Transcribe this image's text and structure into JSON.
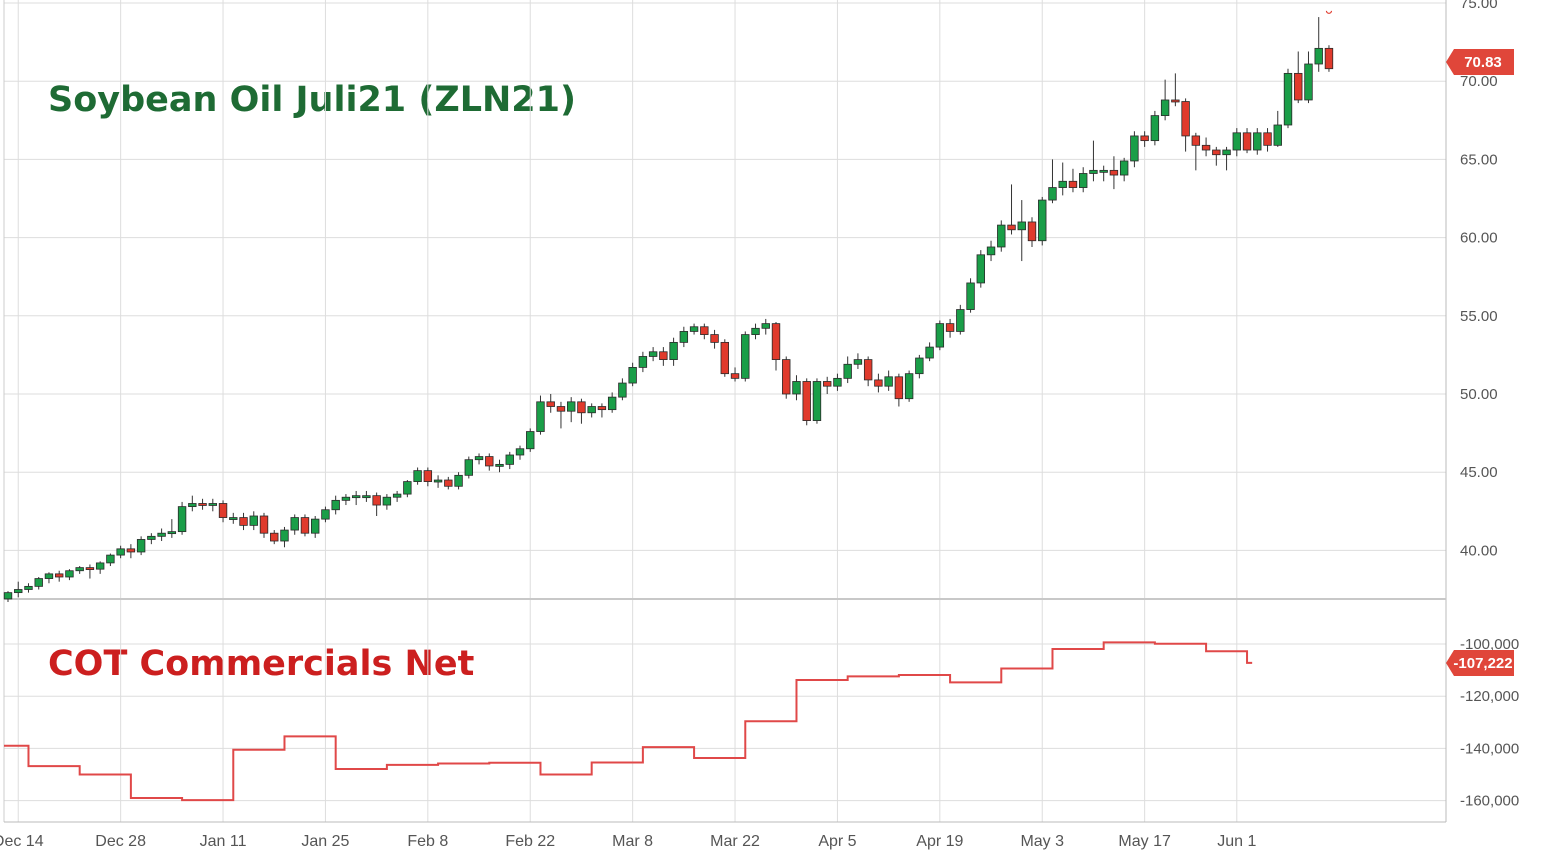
{
  "colors": {
    "up": "#1a9e48",
    "down": "#e03a2c",
    "line": "#e04848",
    "grid": "#dddddd",
    "badge": "#e0463a",
    "title_top": "#1e6b34",
    "title_bottom": "#cc1f1f"
  },
  "chart_data": [
    {
      "type": "candlestick",
      "title": "Soybean Oil Juli21 (ZLN21)",
      "y_ticks": [
        "75.00",
        "70.00",
        "65.00",
        "60.00",
        "55.00",
        "50.00",
        "45.00",
        "40.00"
      ],
      "y_tick_values": [
        75,
        70,
        65,
        60,
        55,
        50,
        45,
        40
      ],
      "ylim": [
        36.5,
        75.0
      ],
      "last_price_label": "70.83",
      "last_price": 70.83,
      "x_tick_labels": [
        "Dec 14",
        "Dec 28",
        "Jan 11",
        "Jan 25",
        "Feb 8",
        "Feb 22",
        "Mar 8",
        "Mar 22",
        "Apr 5",
        "Apr 19",
        "May 3",
        "May 17",
        "Jun 1"
      ],
      "x_tick_index": [
        1,
        11,
        21,
        31,
        41,
        51,
        61,
        71,
        81,
        91,
        101,
        111,
        120
      ],
      "candles": [
        [
          36.9,
          37.3,
          36.7,
          37.4
        ],
        [
          37.3,
          37.5,
          37.0,
          38.0
        ],
        [
          37.5,
          37.7,
          37.3,
          37.9
        ],
        [
          37.7,
          38.2,
          37.5,
          38.3
        ],
        [
          38.2,
          38.5,
          37.9,
          38.6
        ],
        [
          38.5,
          38.3,
          38.0,
          38.7
        ],
        [
          38.3,
          38.7,
          38.1,
          38.8
        ],
        [
          38.7,
          38.9,
          38.5,
          39.0
        ],
        [
          38.9,
          38.8,
          38.2,
          39.1
        ],
        [
          38.8,
          39.2,
          38.5,
          39.3
        ],
        [
          39.2,
          39.7,
          39.0,
          39.8
        ],
        [
          39.7,
          40.1,
          39.5,
          40.3
        ],
        [
          40.1,
          39.9,
          39.5,
          40.4
        ],
        [
          39.9,
          40.7,
          39.7,
          40.9
        ],
        [
          40.7,
          40.9,
          40.4,
          41.1
        ],
        [
          40.9,
          41.1,
          40.6,
          41.4
        ],
        [
          41.1,
          41.2,
          40.8,
          42.0
        ],
        [
          41.2,
          42.8,
          41.0,
          43.1
        ],
        [
          42.8,
          43.0,
          42.5,
          43.5
        ],
        [
          43.0,
          42.9,
          42.6,
          43.3
        ],
        [
          42.9,
          43.0,
          42.5,
          43.3
        ],
        [
          43.0,
          42.1,
          41.8,
          43.2
        ],
        [
          42.1,
          42.1,
          41.7,
          42.4
        ],
        [
          42.1,
          41.6,
          41.3,
          42.4
        ],
        [
          41.6,
          42.2,
          41.3,
          42.5
        ],
        [
          42.2,
          41.1,
          40.8,
          42.4
        ],
        [
          41.1,
          40.6,
          40.4,
          41.3
        ],
        [
          40.6,
          41.3,
          40.2,
          41.5
        ],
        [
          41.3,
          42.1,
          41.0,
          42.3
        ],
        [
          42.1,
          41.1,
          40.9,
          42.3
        ],
        [
          41.1,
          42.0,
          40.8,
          42.2
        ],
        [
          42.0,
          42.6,
          41.8,
          42.8
        ],
        [
          42.6,
          43.2,
          42.3,
          43.5
        ],
        [
          43.2,
          43.4,
          42.9,
          43.6
        ],
        [
          43.4,
          43.5,
          42.9,
          43.8
        ],
        [
          43.5,
          43.5,
          43.1,
          43.8
        ],
        [
          43.5,
          42.9,
          42.2,
          43.7
        ],
        [
          42.9,
          43.4,
          42.6,
          43.6
        ],
        [
          43.4,
          43.6,
          43.1,
          43.8
        ],
        [
          43.6,
          44.4,
          43.4,
          44.5
        ],
        [
          44.4,
          45.1,
          44.2,
          45.3
        ],
        [
          45.1,
          44.4,
          44.1,
          45.3
        ],
        [
          44.4,
          44.5,
          44.0,
          44.8
        ],
        [
          44.5,
          44.1,
          43.9,
          44.7
        ],
        [
          44.1,
          44.8,
          43.9,
          45.0
        ],
        [
          44.8,
          45.8,
          44.6,
          46.0
        ],
        [
          45.8,
          46.0,
          45.5,
          46.2
        ],
        [
          46.0,
          45.4,
          45.1,
          46.2
        ],
        [
          45.4,
          45.5,
          45.0,
          45.8
        ],
        [
          45.5,
          46.1,
          45.2,
          46.3
        ],
        [
          46.1,
          46.5,
          45.8,
          46.7
        ],
        [
          46.5,
          47.6,
          46.3,
          47.8
        ],
        [
          47.6,
          49.5,
          47.4,
          49.9
        ],
        [
          49.5,
          49.2,
          48.8,
          50.0
        ],
        [
          49.2,
          48.9,
          47.8,
          49.5
        ],
        [
          48.9,
          49.5,
          48.2,
          49.8
        ],
        [
          49.5,
          48.8,
          48.1,
          49.7
        ],
        [
          48.8,
          49.2,
          48.5,
          49.4
        ],
        [
          49.2,
          49.0,
          48.5,
          49.4
        ],
        [
          49.0,
          49.8,
          48.8,
          50.1
        ],
        [
          49.8,
          50.7,
          49.6,
          51.0
        ],
        [
          50.7,
          51.7,
          50.5,
          52.0
        ],
        [
          51.7,
          52.4,
          51.4,
          52.7
        ],
        [
          52.4,
          52.7,
          52.1,
          53.0
        ],
        [
          52.7,
          52.2,
          51.8,
          53.0
        ],
        [
          52.2,
          53.3,
          51.8,
          53.6
        ],
        [
          53.3,
          54.0,
          53.0,
          54.3
        ],
        [
          54.0,
          54.3,
          53.8,
          54.5
        ],
        [
          54.3,
          53.8,
          53.5,
          54.5
        ],
        [
          53.8,
          53.3,
          52.9,
          54.1
        ],
        [
          53.3,
          51.3,
          51.1,
          53.5
        ],
        [
          51.3,
          51.0,
          50.8,
          51.7
        ],
        [
          51.0,
          53.8,
          50.8,
          54.0
        ],
        [
          53.8,
          54.2,
          53.5,
          54.5
        ],
        [
          54.2,
          54.5,
          53.8,
          54.8
        ],
        [
          54.5,
          52.2,
          51.5,
          54.6
        ],
        [
          52.2,
          50.0,
          49.7,
          52.4
        ],
        [
          50.0,
          50.8,
          49.6,
          51.2
        ],
        [
          50.8,
          48.3,
          48.0,
          51.0
        ],
        [
          48.3,
          50.8,
          48.1,
          51.0
        ],
        [
          50.8,
          50.5,
          50.0,
          51.1
        ],
        [
          50.5,
          51.0,
          50.2,
          51.3
        ],
        [
          51.0,
          51.9,
          50.7,
          52.4
        ],
        [
          51.9,
          52.2,
          51.6,
          52.6
        ],
        [
          52.2,
          50.9,
          50.5,
          52.4
        ],
        [
          50.9,
          50.5,
          50.1,
          51.3
        ],
        [
          50.5,
          51.1,
          50.2,
          51.5
        ],
        [
          51.1,
          49.7,
          49.2,
          51.3
        ],
        [
          49.7,
          51.3,
          49.5,
          51.5
        ],
        [
          51.3,
          52.3,
          51.0,
          52.5
        ],
        [
          52.3,
          53.0,
          52.1,
          53.3
        ],
        [
          53.0,
          54.5,
          52.8,
          54.7
        ],
        [
          54.5,
          54.0,
          53.6,
          54.8
        ],
        [
          54.0,
          55.4,
          53.8,
          55.7
        ],
        [
          55.4,
          57.1,
          55.2,
          57.4
        ],
        [
          57.1,
          58.9,
          56.8,
          59.2
        ],
        [
          58.9,
          59.4,
          58.5,
          59.8
        ],
        [
          59.4,
          60.8,
          59.1,
          61.1
        ],
        [
          60.8,
          60.5,
          60.2,
          63.4
        ],
        [
          60.5,
          61.0,
          58.5,
          62.4
        ],
        [
          61.0,
          59.8,
          59.4,
          61.3
        ],
        [
          59.8,
          62.4,
          59.5,
          62.6
        ],
        [
          62.4,
          63.2,
          62.2,
          65.0
        ],
        [
          63.2,
          63.6,
          62.7,
          64.8
        ],
        [
          63.6,
          63.2,
          62.9,
          64.4
        ],
        [
          63.2,
          64.1,
          62.9,
          64.5
        ],
        [
          64.1,
          64.3,
          63.6,
          66.2
        ],
        [
          64.3,
          64.3,
          63.6,
          64.6
        ],
        [
          64.3,
          64.0,
          63.1,
          65.2
        ],
        [
          64.0,
          64.9,
          63.6,
          65.1
        ],
        [
          64.9,
          66.5,
          64.5,
          66.8
        ],
        [
          66.5,
          66.2,
          65.8,
          66.8
        ],
        [
          66.2,
          67.8,
          65.9,
          68.1
        ],
        [
          67.8,
          68.8,
          67.5,
          70.1
        ],
        [
          68.8,
          68.7,
          68.4,
          70.5
        ],
        [
          68.7,
          66.5,
          65.5,
          68.9
        ],
        [
          66.5,
          65.9,
          64.3,
          66.7
        ],
        [
          65.9,
          65.6,
          65.2,
          66.4
        ],
        [
          65.6,
          65.3,
          64.6,
          65.8
        ],
        [
          65.3,
          65.6,
          64.3,
          65.8
        ],
        [
          65.6,
          66.7,
          65.2,
          67.0
        ],
        [
          66.7,
          65.6,
          65.4,
          67.0
        ],
        [
          65.6,
          66.7,
          65.3,
          67.0
        ],
        [
          66.7,
          65.9,
          65.5,
          67.0
        ],
        [
          65.9,
          67.2,
          65.8,
          68.1
        ],
        [
          67.2,
          70.5,
          67.0,
          70.8
        ],
        [
          70.5,
          68.8,
          68.6,
          71.9
        ],
        [
          68.8,
          71.1,
          68.6,
          71.9
        ],
        [
          71.1,
          72.1,
          70.6,
          74.1
        ],
        [
          72.1,
          70.8,
          70.6,
          72.3
        ]
      ],
      "marker_last": 74.5
    },
    {
      "type": "step-line",
      "title": "COT Commercials Net",
      "y_ticks": [
        "-100,000",
        "-120,000",
        "-140,000",
        "-160,000"
      ],
      "y_tick_values": [
        -100000,
        -120000,
        -140000,
        -160000
      ],
      "ylim": [
        -161500,
        -97000
      ],
      "last_value_label": "-107,222",
      "x_start_index": -3.5,
      "x_end_index": 125,
      "steps": [
        [
          -3.5,
          -139000
        ],
        [
          2,
          -146800
        ],
        [
          7,
          -150000
        ],
        [
          12,
          -159000
        ],
        [
          17,
          -159800
        ],
        [
          22,
          -140500
        ],
        [
          27,
          -135400
        ],
        [
          32,
          -147900
        ],
        [
          37,
          -146300
        ],
        [
          42,
          -145800
        ],
        [
          47,
          -145500
        ],
        [
          52,
          -150000
        ],
        [
          57,
          -145400
        ],
        [
          62,
          -139500
        ],
        [
          67,
          -143700
        ],
        [
          72,
          -129600
        ],
        [
          77,
          -113800
        ],
        [
          82,
          -112400
        ],
        [
          87,
          -111900
        ],
        [
          92,
          -114700
        ],
        [
          97,
          -109400
        ],
        [
          102,
          -101900
        ],
        [
          107,
          -99400
        ],
        [
          112,
          -99900
        ],
        [
          117,
          -102800
        ],
        [
          121,
          -107222
        ],
        [
          121.5,
          -107222
        ]
      ]
    }
  ]
}
